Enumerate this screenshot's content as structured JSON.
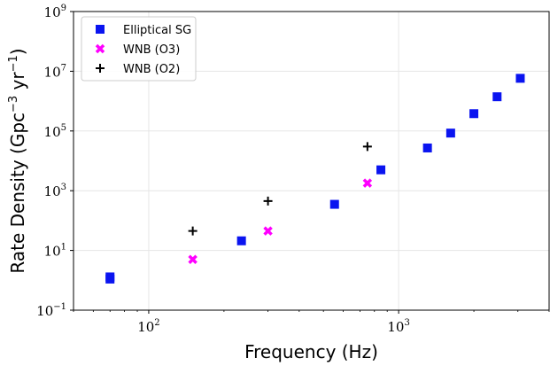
{
  "chart_data": {
    "type": "scatter",
    "xlabel": "Frequency (Hz)",
    "ylabel": "Rate Density (Gpc",
    "ylabel_exp1": "−3",
    "ylabel_mid": " yr",
    "ylabel_exp2": "−1",
    "ylabel_end": ")",
    "xscale": "log",
    "yscale": "log",
    "xlim": [
      50,
      4000
    ],
    "ylim": [
      0.1,
      1000000000
    ],
    "grid": true,
    "legend_position": "top-left",
    "x_ticks": [
      {
        "value": 100,
        "base": "10",
        "exp": "2"
      },
      {
        "value": 1000,
        "base": "10",
        "exp": "3"
      }
    ],
    "y_ticks": [
      {
        "value": 0.1,
        "base": "10",
        "exp": "−1"
      },
      {
        "value": 10,
        "base": "10",
        "exp": "1"
      },
      {
        "value": 1000,
        "base": "10",
        "exp": "3"
      },
      {
        "value": 100000,
        "base": "10",
        "exp": "5"
      },
      {
        "value": 10000000,
        "base": "10",
        "exp": "7"
      },
      {
        "value": 1000000000,
        "base": "10",
        "exp": "9"
      }
    ],
    "series": [
      {
        "name": "Elliptical SG",
        "marker": "square",
        "color": "#0a14f0",
        "points": [
          {
            "x": 70,
            "y": 1.1
          },
          {
            "x": 70,
            "y": 1.3
          },
          {
            "x": 235,
            "y": 21
          },
          {
            "x": 554,
            "y": 350
          },
          {
            "x": 849,
            "y": 5000
          },
          {
            "x": 1304,
            "y": 27000
          },
          {
            "x": 1615,
            "y": 85000
          },
          {
            "x": 2000,
            "y": 380000
          },
          {
            "x": 2477,
            "y": 1400000
          },
          {
            "x": 3067,
            "y": 5800000
          }
        ]
      },
      {
        "name": "WNB (O3)",
        "marker": "x",
        "color": "#ff00ff",
        "points": [
          {
            "x": 150,
            "y": 5
          },
          {
            "x": 300,
            "y": 45
          },
          {
            "x": 750,
            "y": 1800
          }
        ]
      },
      {
        "name": "WNB (O2)",
        "marker": "plus",
        "color": "#000000",
        "points": [
          {
            "x": 150,
            "y": 45
          },
          {
            "x": 300,
            "y": 450
          },
          {
            "x": 750,
            "y": 30000
          }
        ]
      }
    ]
  }
}
